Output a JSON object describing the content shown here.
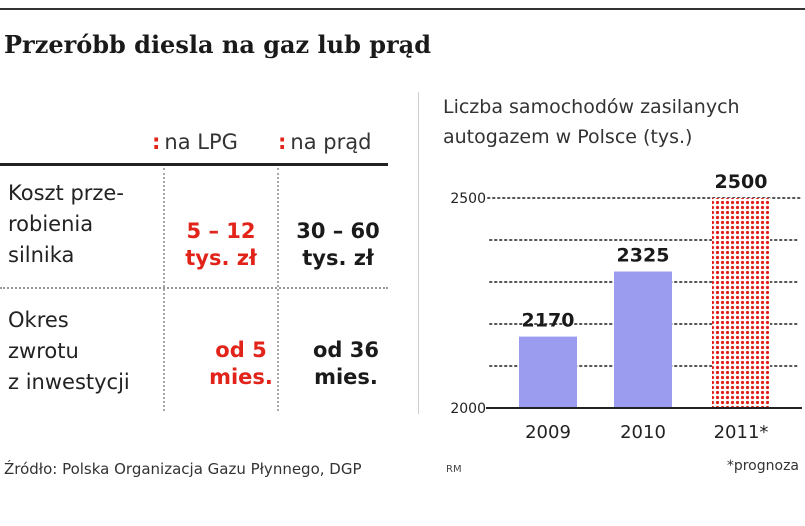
{
  "title": "Przeróbb diesla na gaz lub prąd",
  "table": {
    "headers": [
      "na LPG",
      "na prąd"
    ],
    "bullet_glyph": ":",
    "rows": [
      {
        "label_lines": [
          "Koszt prze-",
          "robienia",
          "silnika"
        ],
        "lpg": [
          "5 – 12",
          "tys. zł"
        ],
        "electric": [
          "30 – 60",
          "tys. zł"
        ]
      },
      {
        "label_lines": [
          "Okres",
          "zwrotu",
          "z inwestycji"
        ],
        "lpg": [
          "od 5",
          "mies."
        ],
        "electric": [
          "od 36",
          "mies."
        ]
      }
    ]
  },
  "chart_data": {
    "type": "bar",
    "title_lines": [
      "Liczba samochodów zasilanych",
      "autogazem w Polsce (tys.)"
    ],
    "categories": [
      "2009",
      "2010",
      "2011*"
    ],
    "values": [
      2170,
      2325,
      2500
    ],
    "data_labels": [
      "2170",
      "2325",
      "2500"
    ],
    "forecast": [
      false,
      false,
      true
    ],
    "ylim": [
      2000,
      2500
    ],
    "yticks": [
      2000,
      2500
    ],
    "grid": "dotted",
    "xlabel": "",
    "ylabel": ""
  },
  "source": "Źródło: Polska Organizacja Gazu Płynnego, DGP",
  "credit": "RM",
  "footnote": "*prognoza",
  "colors": {
    "accent_red": "#e2231a",
    "bar": "#9b9bf0",
    "text": "#222222"
  }
}
